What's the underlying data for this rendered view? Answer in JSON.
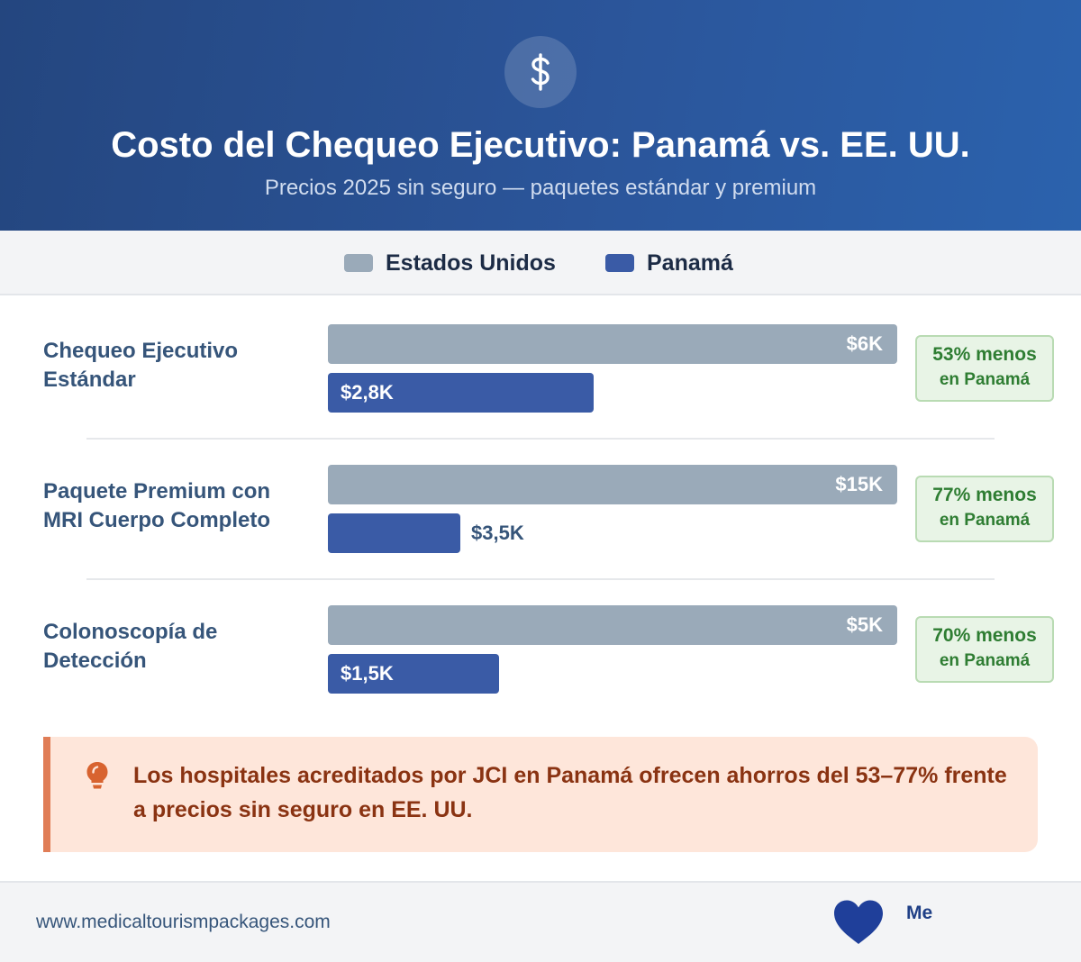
{
  "header": {
    "icon": "dollar-icon",
    "title": "Costo del Chequeo Ejecutivo: Panamá vs. EE. UU.",
    "subtitle": "Precios 2025 sin seguro — paquetes estándar y premium"
  },
  "legend": {
    "us_label": "Estados Unidos",
    "pa_label": "Panamá"
  },
  "chart_data": {
    "type": "bar",
    "orientation": "horizontal",
    "title": "Costo del Chequeo Ejecutivo: Panamá vs. EE. UU.",
    "subtitle": "Precios 2025 sin seguro — paquetes estándar y premium",
    "categories": [
      "Chequeo Ejecutivo Estándar",
      "Paquete Premium con MRI Cuerpo Completo",
      "Colonoscopía de Detección"
    ],
    "series": [
      {
        "name": "Estados Unidos",
        "color": "#9aaab9",
        "values": [
          6000,
          15000,
          5000
        ],
        "labels": [
          "$6K",
          "$15K",
          "$5K"
        ]
      },
      {
        "name": "Panamá",
        "color": "#3a5ba6",
        "values": [
          2800,
          3500,
          1500
        ],
        "labels": [
          "$2,8K",
          "$3,5K",
          "$1,5K"
        ]
      }
    ],
    "savings": [
      {
        "main": "53% menos",
        "sub": "en Panamá"
      },
      {
        "main": "77% menos",
        "sub": "en Panamá"
      },
      {
        "main": "70% menos",
        "sub": "en Panamá"
      }
    ],
    "legend_position": "top-center",
    "grid": false
  },
  "callout": {
    "icon": "lightbulb-icon",
    "text": "Los hospitales acreditados por JCI en Panamá ofrecen ahorros del 53–77% frente a precios sin seguro en EE. UU."
  },
  "footer": {
    "url": "www.medicaltourismpackages.com",
    "logo_icon": "heart-icon",
    "logo_text": "Me"
  },
  "colors": {
    "header_start": "#24467f",
    "header_end": "#2b62ad",
    "us_bar": "#9aaab9",
    "pa_bar": "#3a5ba6",
    "savings_green": "#2e7d32",
    "callout_accent": "#e07d56",
    "callout_text": "#8a3312"
  }
}
